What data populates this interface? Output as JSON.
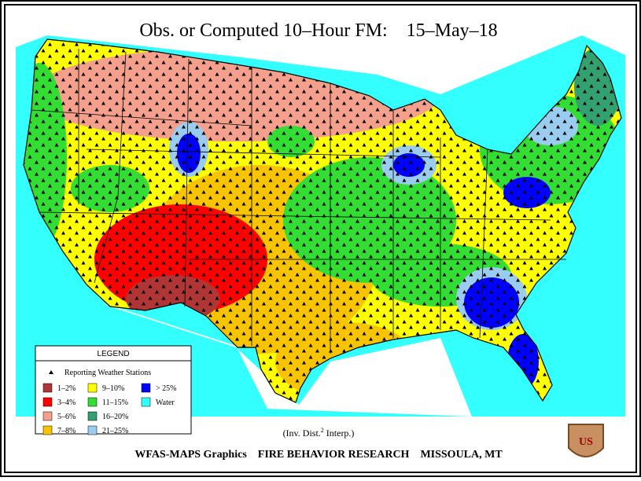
{
  "title": "Obs. or Computed 10–Hour FM:    15–May–18",
  "legend": {
    "title": "LEGEND",
    "stations": "Reporting Weather Stations",
    "items": [
      {
        "label": "1–2%",
        "color": "#b03535"
      },
      {
        "label": "3–4%",
        "color": "#ff0000"
      },
      {
        "label": "5–6%",
        "color": "#f4a08c"
      },
      {
        "label": "7–8%",
        "color": "#f8c400"
      },
      {
        "label": "9–10%",
        "color": "#ffff00"
      },
      {
        "label": "11–15%",
        "color": "#33dd33"
      },
      {
        "label": "16–20%",
        "color": "#33a070"
      },
      {
        "label": "21–25%",
        "color": "#99ccee"
      },
      {
        "label": "> 25%",
        "color": "#0000ff"
      },
      {
        "label": "Water",
        "color": "#33ffff"
      }
    ]
  },
  "interp": {
    "before": "(Inv. Dist.",
    "sup": "2",
    "after": " Interp.)"
  },
  "footer": "WFAS-MAPS Graphics    FIRE BEHAVIOR RESEARCH    MISSOULA, MT",
  "badge": "US"
}
